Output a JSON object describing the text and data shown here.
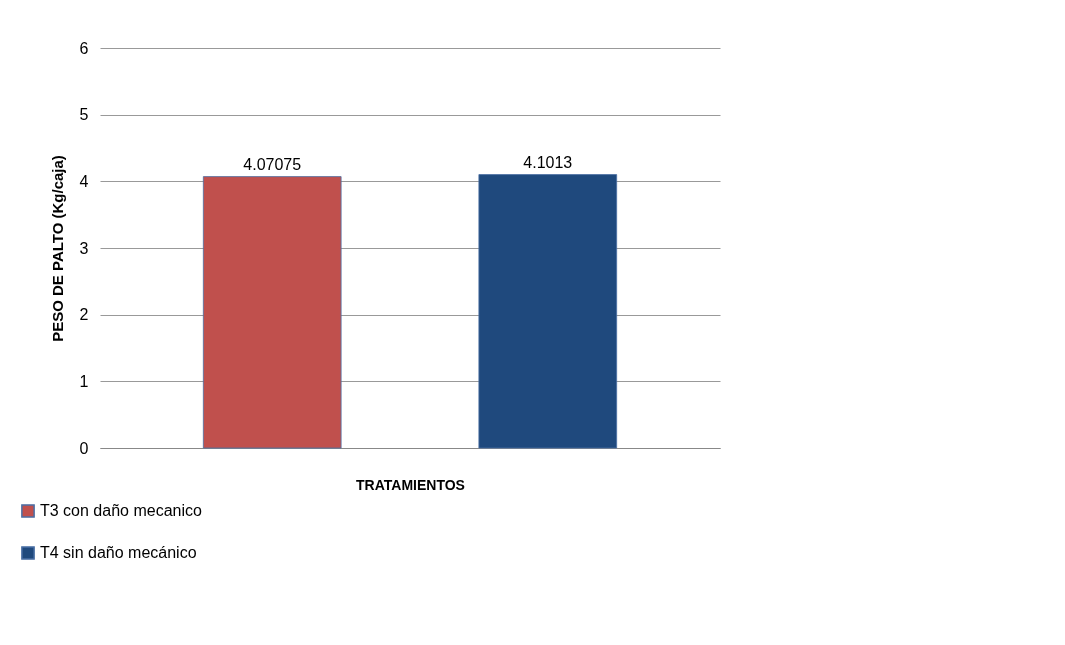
{
  "chart_data": {
    "type": "bar",
    "xlabel": "TRATAMIENTOS",
    "ylabel": "PESO DE PALTO (Kg/caja)",
    "categories": [
      null
    ],
    "series": [
      {
        "name": "T3 con daño mecanico",
        "color": "#c0504d",
        "values": [
          4.07075
        ]
      },
      {
        "name": "T4 sin daño mecánico",
        "color": "#1f497d",
        "values": [
          4.1013
        ]
      }
    ],
    "ylim": [
      0,
      6
    ],
    "yticks": [
      0,
      1,
      2,
      3,
      4,
      5,
      6
    ],
    "grid": "y",
    "legend": "bottom left",
    "data_labels": true,
    "tick_labels": "y"
  }
}
